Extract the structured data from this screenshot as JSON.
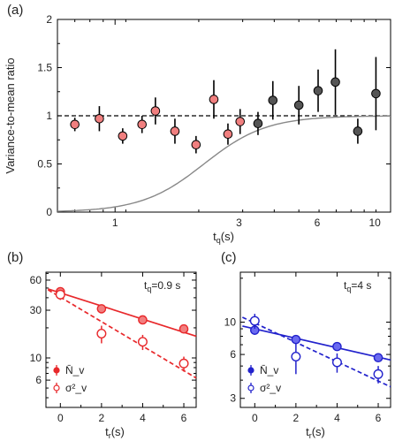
{
  "chart_data": [
    {
      "type": "scatter",
      "panel_label": "(a)",
      "xlabel": "t_q(s)",
      "ylabel": "Variance-to-mean ratio",
      "xscale": "log",
      "xlim": [
        0.6,
        11.5
      ],
      "ylim": [
        0,
        2
      ],
      "x_ticks": [
        "1",
        "3",
        "6",
        "10"
      ],
      "y_ticks": [
        "0",
        "0.5",
        "1",
        "1.5",
        "2"
      ],
      "reference_line": 1,
      "curve": "sigmoid-like gray curve rising from 0 to 1",
      "colors": {
        "red": "#f07f7f",
        "gray": "#555555",
        "curve": "#888888",
        "dash": "#000000"
      },
      "series": [
        {
          "x": [
            0.7,
            0.87,
            1.07,
            1.27,
            1.43,
            1.7,
            2.05,
            2.4,
            2.72,
            3.03
          ],
          "y": [
            0.91,
            0.97,
            0.79,
            0.91,
            1.05,
            0.84,
            0.7,
            1.17,
            0.81,
            0.94
          ],
          "err": [
            0.07,
            0.13,
            0.08,
            0.09,
            0.14,
            0.13,
            0.09,
            0.2,
            0.11,
            0.13
          ],
          "color": "red"
        },
        {
          "x": [
            3.55,
            4.05,
            5.1,
            6.05,
            7.05,
            8.6,
            10.1
          ],
          "y": [
            0.92,
            1.16,
            1.11,
            1.26,
            1.35,
            0.84,
            1.23
          ],
          "err": [
            0.12,
            0.2,
            0.2,
            0.22,
            0.34,
            0.13,
            0.38
          ],
          "color": "gray"
        }
      ]
    },
    {
      "type": "scatter",
      "panel_label": "(b)",
      "annotation": "t_q=0.9 s",
      "xlabel": "t_r(s)",
      "yscale": "log",
      "xlim": [
        -0.7,
        6.6
      ],
      "ylim": [
        3.2,
        72
      ],
      "x_ticks": [
        "0",
        "2",
        "4",
        "6"
      ],
      "y_ticks": [
        "6",
        "10",
        "30",
        "60"
      ],
      "color": "#e8282b",
      "legend": [
        "N̄_v",
        "σ²_v"
      ],
      "series": [
        {
          "name": "N̄_v",
          "x": [
            0,
            2,
            4,
            6
          ],
          "y": [
            46,
            31,
            24,
            19.5
          ],
          "err": [
            4,
            2,
            2,
            1.5
          ],
          "filled": true,
          "fit": {
            "x": [
              -0.6,
              6.6
            ],
            "y": [
              49,
              16.5
            ],
            "style": "solid"
          }
        },
        {
          "name": "σ²_v",
          "x": [
            0,
            2,
            4,
            6
          ],
          "y": [
            43,
            17.5,
            14.5,
            8.8
          ],
          "err": [
            5,
            3.5,
            2.5,
            1.5
          ],
          "filled": false,
          "fit": {
            "x": [
              -0.6,
              6.6
            ],
            "y": [
              48,
              6.3
            ],
            "style": "dashed"
          }
        }
      ]
    },
    {
      "type": "scatter",
      "panel_label": "(c)",
      "annotation": "t_q=4 s",
      "xlabel": "t_r(s)",
      "yscale": "log",
      "xlim": [
        -0.7,
        6.6
      ],
      "ylim": [
        2.6,
        22
      ],
      "x_ticks": [
        "0",
        "2",
        "4",
        "6"
      ],
      "y_ticks": [
        "3",
        "6",
        "10"
      ],
      "color": "#2222cc",
      "legend": [
        "N̄_v",
        "σ²_v"
      ],
      "series": [
        {
          "name": "N̄_v",
          "x": [
            0,
            2,
            4,
            6
          ],
          "y": [
            8.8,
            7.6,
            6.8,
            5.7
          ],
          "err": [
            0.6,
            0.5,
            0.4,
            0.3
          ],
          "filled": true,
          "fit": {
            "x": [
              -0.6,
              6.6
            ],
            "y": [
              9.4,
              5.5
            ],
            "style": "solid"
          }
        },
        {
          "name": "σ²_v",
          "x": [
            0,
            2,
            4,
            6
          ],
          "y": [
            10.2,
            5.8,
            5.3,
            4.4
          ],
          "err": [
            1.2,
            1.4,
            0.8,
            0.6
          ],
          "filled": false,
          "fit": {
            "x": [
              -0.6,
              6.6
            ],
            "y": [
              10.8,
              3.6
            ],
            "style": "dashed"
          }
        }
      ]
    }
  ]
}
